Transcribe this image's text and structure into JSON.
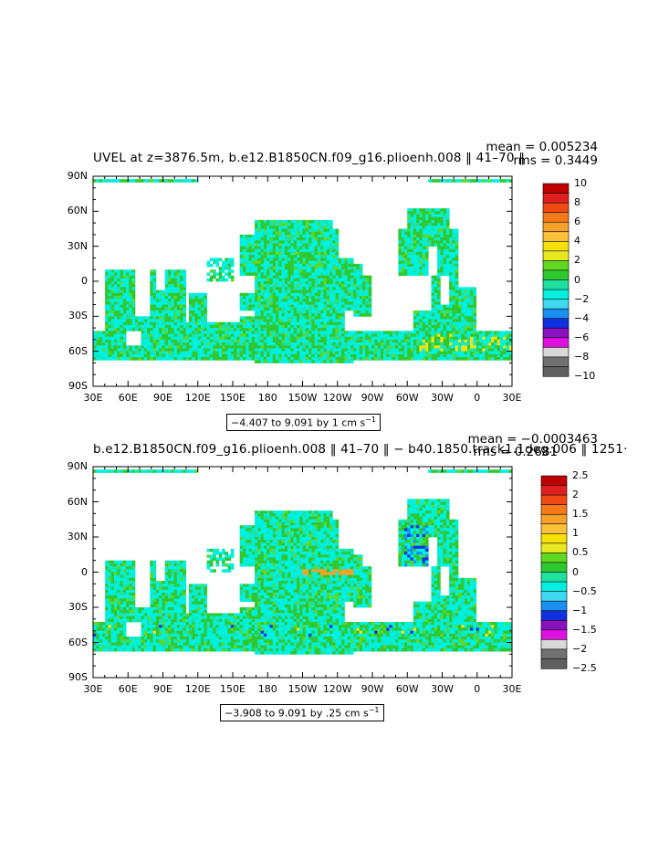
{
  "panels": [
    {
      "title": "UVEL at z=3876.5m, b.e12.B1850CN.f09_g16.plioenh.008 ‖ 41–70 ‖",
      "mean_text": "mean = 0.005234",
      "rms_text": "rms = 0.3449",
      "range_text": "−4.407 to 9.091 by 1 cm s",
      "range_sup": "−1",
      "y_labels": [
        "90N",
        "60N",
        "30N",
        "0",
        "30S",
        "60S",
        "90S"
      ],
      "x_labels": [
        "30E",
        "60E",
        "90E",
        "120E",
        "150E",
        "180",
        "150W",
        "120W",
        "90W",
        "60W",
        "30W",
        "0",
        "30E"
      ],
      "colorbar_labels": [
        "10",
        "8",
        "6",
        "4",
        "2",
        "0",
        "−2",
        "−4",
        "−6",
        "−8",
        "−10"
      ],
      "scale": 1,
      "anomaly": false
    },
    {
      "title": "b.e12.B1850CN.f09_g16.plioenh.008 ‖ 41–70 ‖ − b40.1850.track1.1deg.006 ‖ 1251·",
      "mean_text": "mean = −0.0003463",
      "rms_text": "rms = 0.2681",
      "range_text": "−3.908 to 9.091 by .25 cm s",
      "range_sup": "−1",
      "y_labels": [
        "90N",
        "60N",
        "30N",
        "0",
        "30S",
        "60S",
        "90S"
      ],
      "x_labels": [
        "30E",
        "60E",
        "90E",
        "120E",
        "150E",
        "180",
        "150W",
        "120W",
        "90W",
        "60W",
        "30W",
        "0",
        "30E"
      ],
      "colorbar_labels": [
        "2.5",
        "2",
        "1.5",
        "1",
        "0.5",
        "0",
        "−0.5",
        "−1",
        "−1.5",
        "−2",
        "−2.5"
      ],
      "scale": 0.25,
      "anomaly": true
    }
  ],
  "palette": [
    "#c00000",
    "#e02020",
    "#f04a14",
    "#f67a1a",
    "#f8a028",
    "#fbc03a",
    "#f6e20a",
    "#c8f020",
    "#60d820",
    "#30c830",
    "#20e0a0",
    "#00f0e0",
    "#40d8f0",
    "#1a90f0",
    "#1030e0",
    "#8a10c0",
    "#e010e0",
    "#d8d8d8",
    "#707070"
  ],
  "colorbar_colors": [
    "#c00000",
    "#e02020",
    "#f04a14",
    "#f67a1a",
    "#f8a028",
    "#fbc03a",
    "#f6e20a",
    "#e8e820",
    "#60d820",
    "#30c830",
    "#20e0a0",
    "#00f0e0",
    "#40d8f0",
    "#1a90f0",
    "#1030e0",
    "#8a10c0",
    "#e010e0",
    "#d8d8d8",
    "#707070",
    "#606060"
  ]
}
